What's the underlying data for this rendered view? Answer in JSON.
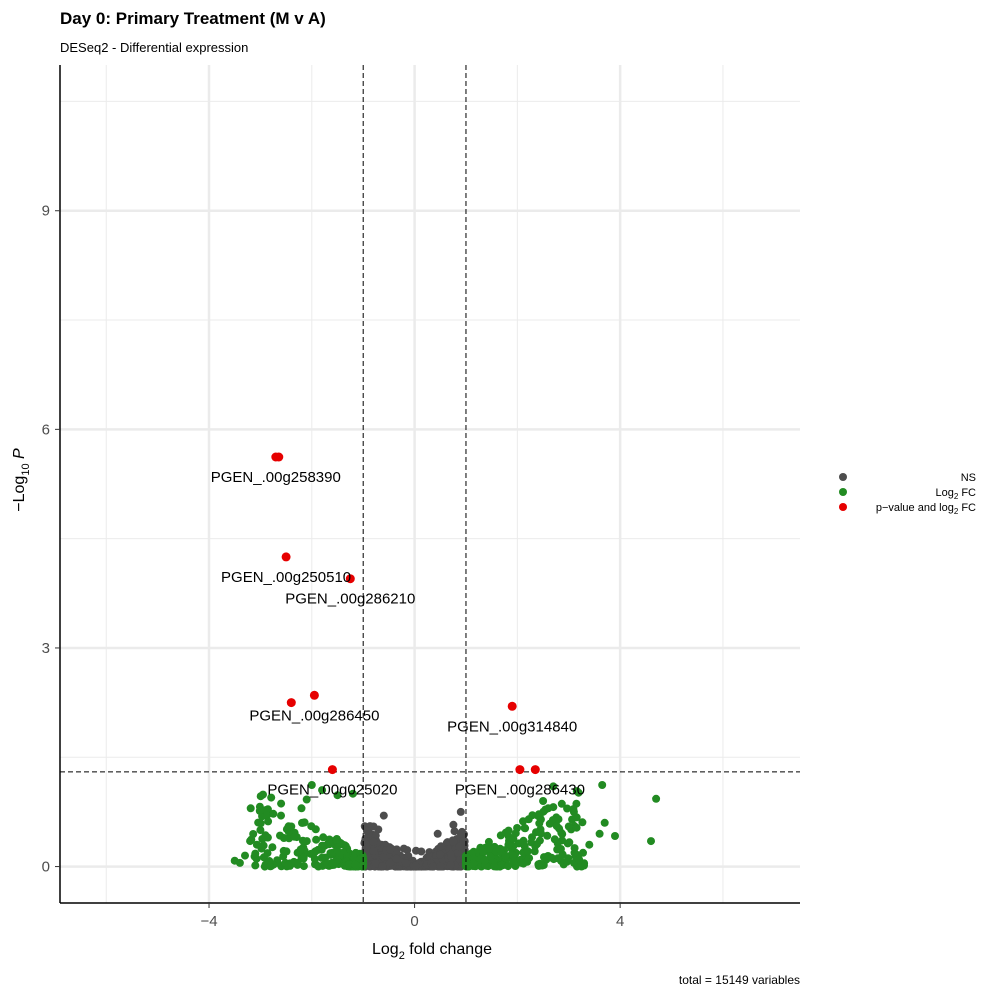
{
  "chart_data": {
    "type": "scatter",
    "title": "Day 0: Primary Treatment (M v A)",
    "subtitle": "DESeq2 - Differential expression",
    "caption": "total = 15149 variables",
    "xlabel": {
      "main": "Log",
      "sub": "2",
      "rest": " fold change"
    },
    "ylabel": {
      "prefix": "−Log",
      "sub": "10",
      "italic": " P"
    },
    "xlim": [
      -6.9,
      7.5
    ],
    "ylim": [
      -0.5,
      11.0
    ],
    "x_ticks": [
      -4,
      0,
      4
    ],
    "y_ticks": [
      0,
      3,
      6,
      9
    ],
    "thresholds": {
      "log2fc": [
        -1,
        1
      ],
      "neg_log10_p": 1.3
    },
    "grid": true,
    "legend_position": "right",
    "legend": [
      {
        "key": "ns",
        "label": "NS",
        "color": "#4d4d4d"
      },
      {
        "key": "fc",
        "label": "Log",
        "label_sub": "2",
        "label_rest": " FC",
        "color": "#228b22"
      },
      {
        "key": "both",
        "label": "p−value and log",
        "label_sub": "2",
        "label_rest": " FC",
        "color": "#e60000"
      }
    ],
    "highlighted": [
      {
        "x": -2.7,
        "y": 5.62,
        "label": "PGEN_.00g258390"
      },
      {
        "x": -2.5,
        "y": 4.25,
        "label": "PGEN_.00g250510"
      },
      {
        "x": -1.25,
        "y": 3.95,
        "label": "PGEN_.00g286210"
      },
      {
        "x": -1.95,
        "y": 2.35,
        "label": "PGEN_.00g286450"
      },
      {
        "x": -2.4,
        "y": 2.25
      },
      {
        "x": 1.9,
        "y": 2.2,
        "label": "PGEN_.00g314840"
      },
      {
        "x": -1.6,
        "y": 1.33,
        "label": "PGEN_.00g025020"
      },
      {
        "x": 2.05,
        "y": 1.33,
        "label": "PGEN_.00g286430"
      },
      {
        "x": 2.35,
        "y": 1.33
      }
    ],
    "green_outliers": [
      [
        4.7,
        0.93
      ],
      [
        4.6,
        0.35
      ],
      [
        3.9,
        0.42
      ],
      [
        3.7,
        0.6
      ],
      [
        3.6,
        0.45
      ],
      [
        3.2,
        0.1
      ],
      [
        3.0,
        0.55
      ],
      [
        2.8,
        0.65
      ],
      [
        2.6,
        0.8
      ],
      [
        2.5,
        0.9
      ],
      [
        3.65,
        1.12
      ],
      [
        2.7,
        1.1
      ],
      [
        -3.5,
        0.08
      ],
      [
        -3.3,
        0.15
      ],
      [
        -3.2,
        0.35
      ],
      [
        -3.0,
        0.5
      ],
      [
        -2.85,
        0.62
      ],
      [
        -2.6,
        0.7
      ],
      [
        -2.4,
        0.55
      ],
      [
        -2.2,
        0.8
      ],
      [
        -2.0,
        1.12
      ],
      [
        -1.8,
        1.05
      ],
      [
        -1.5,
        0.98
      ],
      [
        -1.2,
        1.0
      ],
      [
        -3.4,
        0.05
      ],
      [
        -2.9,
        0.4
      ],
      [
        -2.1,
        0.92
      ],
      [
        3.4,
        0.3
      ],
      [
        3.1,
        0.75
      ]
    ],
    "ns_outliers": [
      [
        0.9,
        0.75
      ],
      [
        0.45,
        0.45
      ],
      [
        -0.6,
        0.7
      ],
      [
        -0.8,
        0.55
      ]
    ]
  }
}
